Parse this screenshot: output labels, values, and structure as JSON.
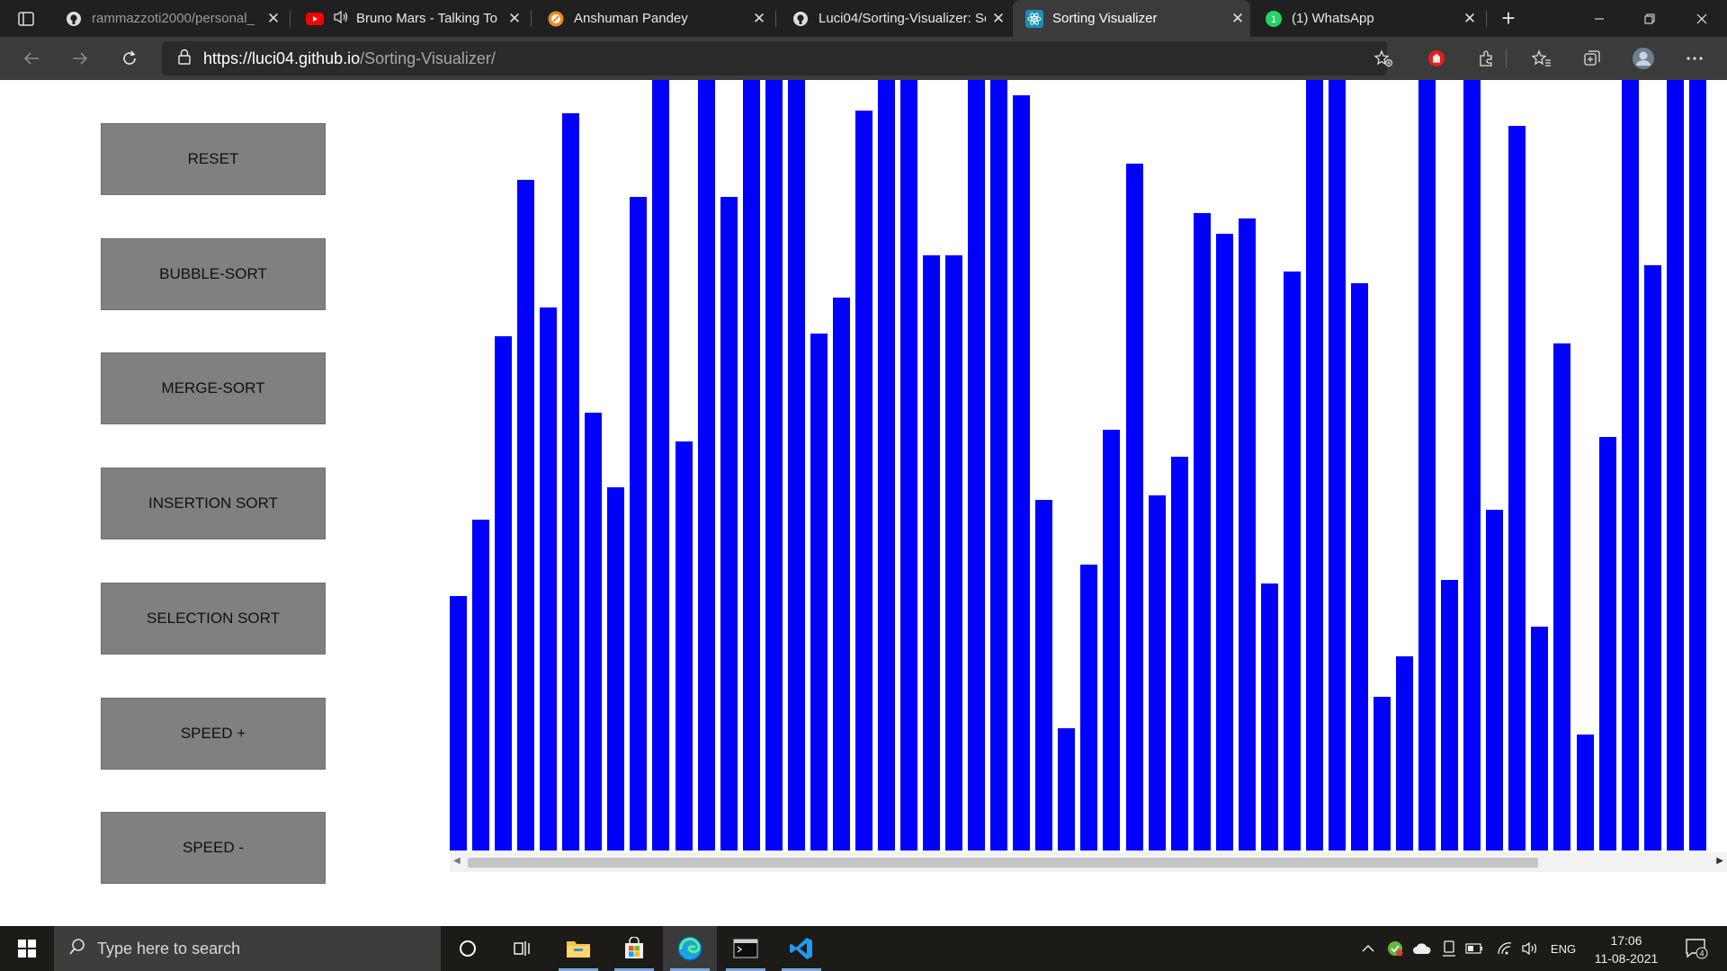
{
  "browser": {
    "tabs": [
      {
        "title": "rammazzoti2000/personal_",
        "icon": "github-icon",
        "active": false
      },
      {
        "title": "Bruno Mars - Talking To",
        "icon": "youtube-icon",
        "active": false,
        "audio": true
      },
      {
        "title": "Anshuman Pandey",
        "icon": "site-icon",
        "active": false
      },
      {
        "title": "Luci04/Sorting-Visualizer: So",
        "icon": "github-icon",
        "active": false
      },
      {
        "title": "Sorting Visualizer",
        "icon": "react-icon",
        "active": true
      },
      {
        "title": "(1) WhatsApp",
        "icon": "whatsapp-icon",
        "active": false
      }
    ],
    "tab_close_glyph": "✕",
    "new_tab_glyph": "+",
    "url_host": "https://luci04.github.io",
    "url_path": "/Sorting-Visualizer/"
  },
  "controls": {
    "reset": "RESET",
    "bubble": "BUBBLE-SORT",
    "merge": "MERGE-SORT",
    "insertion": "INSERTION SORT",
    "selection": "SELECTION SORT",
    "speed_up": "SPEED +",
    "speed_down": "SPEED -"
  },
  "chart_data": {
    "type": "bar",
    "color": "#0000ff",
    "ylim": [
      0,
      857
    ],
    "values": [
      283,
      368,
      572,
      746,
      604,
      820,
      487,
      404,
      727,
      857,
      455,
      857,
      727,
      857,
      857,
      857,
      575,
      615,
      823,
      857,
      857,
      662,
      662,
      857,
      857,
      840,
      390,
      136,
      318,
      468,
      764,
      395,
      438,
      709,
      686,
      703,
      297,
      644,
      857,
      857,
      631,
      171,
      216,
      857,
      301,
      857,
      379,
      806,
      249,
      564,
      129,
      460,
      857,
      651,
      857,
      857
    ]
  },
  "taskbar": {
    "search_placeholder": "Type here to search",
    "language": "ENG",
    "time": "17:06",
    "date": "11-08-2021",
    "notification_count": "4"
  }
}
